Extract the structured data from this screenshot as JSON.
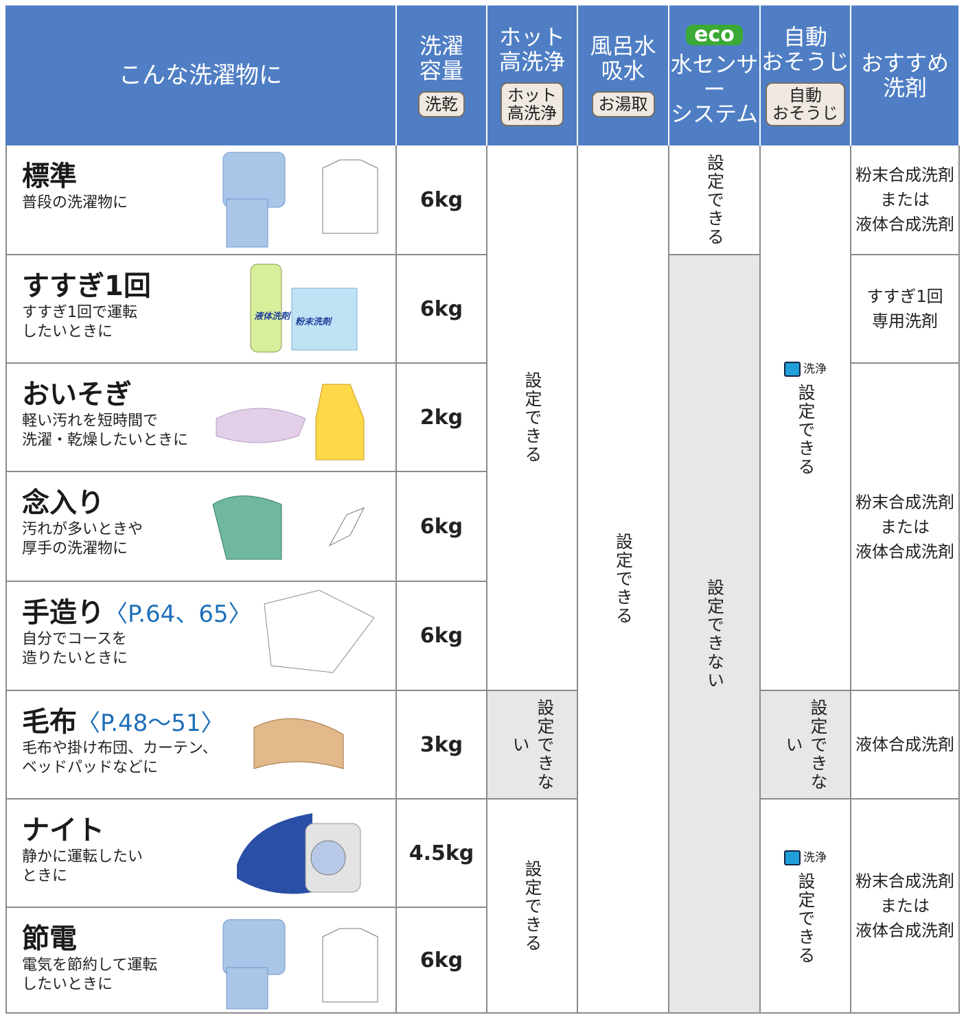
{
  "header": {
    "columns": [
      {
        "title": [
          "こんな洗濯物に"
        ]
      },
      {
        "title": [
          "洗濯",
          "容量"
        ],
        "badge": [
          "洗乾"
        ]
      },
      {
        "title": [
          "ホット",
          "高洗浄"
        ],
        "badge": [
          "ホット",
          "高洗浄"
        ]
      },
      {
        "title": [
          "風呂水",
          "吸水"
        ],
        "badge": [
          "お湯取"
        ]
      },
      {
        "badge": [
          "eco"
        ],
        "title": [
          "水センサー",
          "システム"
        ]
      },
      {
        "title": [
          "自動",
          "おそうじ"
        ],
        "badge": [
          "自動",
          "おそうじ"
        ]
      },
      {
        "title": [
          "おすすめ",
          "洗剤"
        ]
      }
    ]
  },
  "rows": [
    {
      "name": "標準",
      "description": [
        "普段の洗濯物に"
      ],
      "capacity": "6kg"
    },
    {
      "name": "すすぎ1回",
      "description": [
        "すすぎ1回で運転",
        "したいときに"
      ],
      "capacity": "6kg",
      "labels": [
        "液体洗剤",
        "粉末洗剤"
      ]
    },
    {
      "name": "おいそぎ",
      "description": [
        "軽い汚れを短時間で",
        "洗濯・乾燥したいときに"
      ],
      "capacity": "2kg"
    },
    {
      "name": "念入り",
      "description": [
        "汚れが多いときや",
        "厚手の洗濯物に"
      ],
      "capacity": "6kg"
    },
    {
      "name": "手造り",
      "ref": "〈P.64、65〉",
      "description": [
        "自分でコースを",
        "造りたいときに"
      ],
      "capacity": "6kg"
    },
    {
      "name": "毛布",
      "ref": "〈P.48～51〉",
      "description": [
        "毛布や掛け布団、カーテン、",
        "ベッドパッドなどに"
      ],
      "capacity": "3kg"
    },
    {
      "name": "ナイト",
      "description": [
        "静かに運転したい",
        "ときに"
      ],
      "capacity": "4.5kg"
    },
    {
      "name": "節電",
      "description": [
        "電気を節約して運転",
        "したいときに"
      ],
      "capacity": "6kg"
    }
  ],
  "hot_wash": [
    "設定できる",
    "設定できない",
    "設定できる"
  ],
  "bath_water": [
    "設定できる"
  ],
  "eco": [
    "設定できる",
    "設定できない"
  ],
  "auto_clean": [
    {
      "icon": "洗浄",
      "text": "設定できる"
    },
    {
      "text": "設定できない"
    },
    {
      "icon": "洗浄",
      "text": "設定できる"
    }
  ],
  "detergent": [
    [
      "粉末合成洗剤",
      "または",
      "液体合成洗剤"
    ],
    [
      "すすぎ1回",
      "専用洗剤"
    ],
    [
      "粉末合成洗剤",
      "または",
      "液体合成洗剤"
    ],
    [
      "液体合成洗剤"
    ],
    [
      "粉末合成洗剤",
      "または",
      "液体合成洗剤"
    ]
  ]
}
